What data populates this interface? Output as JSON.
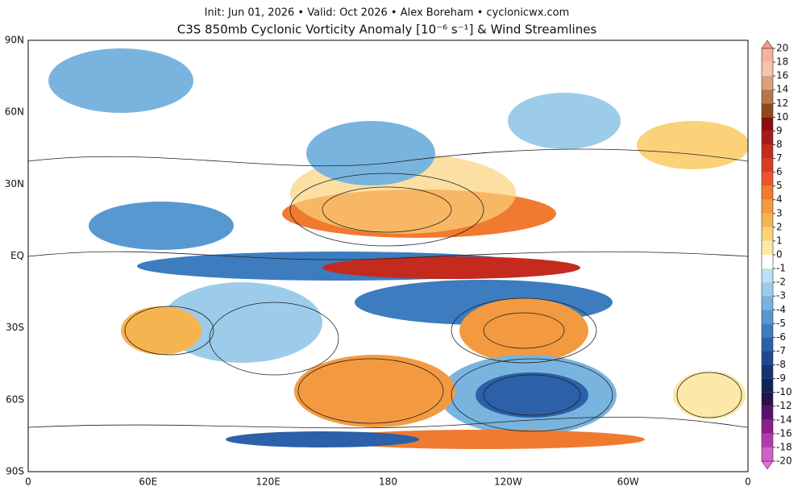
{
  "header": {
    "subtitle": "Init: Jun 01, 2026 • Valid: Oct 2026 • Alex Boreham • cyclonicwx.com",
    "title": "C3S 850mb Cyclonic Vorticity Anomaly [10⁻⁶ s⁻¹] & Wind Streamlines"
  },
  "map": {
    "lat_labels": [
      "90N",
      "60N",
      "30N",
      "EQ",
      "30S",
      "60S",
      "90S"
    ],
    "lon_labels": [
      "0",
      "60E",
      "120E",
      "180",
      "120W",
      "60W",
      "0"
    ]
  },
  "colorbar": {
    "labels": [
      "20",
      "18",
      "16",
      "14",
      "12",
      "10",
      "9",
      "8",
      "7",
      "6",
      "5",
      "4",
      "3",
      "2",
      "1",
      "0",
      "-1",
      "-2",
      "-3",
      "-4",
      "-5",
      "-6",
      "-7",
      "-8",
      "-9",
      "-10",
      "-12",
      "-14",
      "-16",
      "-18",
      "-20"
    ]
  }
}
